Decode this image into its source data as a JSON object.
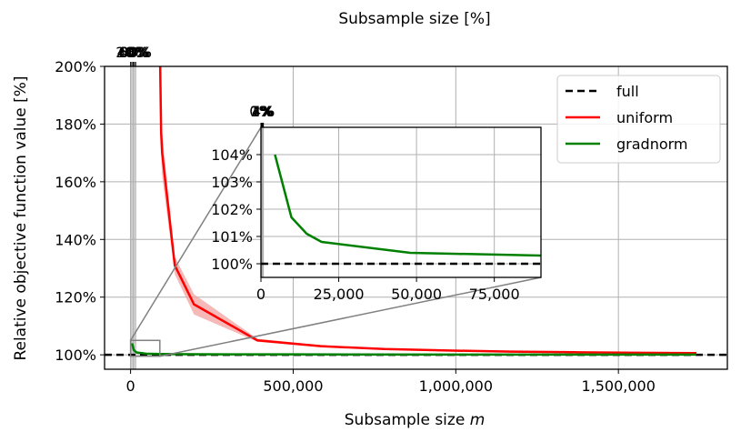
{
  "chart_data": [
    {
      "type": "line",
      "xlabel_prefix": "Subsample size ",
      "xlabel_var": "m",
      "ylabel": "Relative objective function value [%]",
      "secondary_xlabel": "Subsample size [%]",
      "xlim": [
        -80000,
        1835000
      ],
      "ylim": [
        95,
        200
      ],
      "x_ticks": [
        0,
        500000,
        1000000,
        1500000
      ],
      "x_tick_labels": [
        "0",
        "500,000",
        "1,000,000",
        "1,500,000"
      ],
      "y_ticks": [
        100,
        120,
        140,
        160,
        180,
        200
      ],
      "y_tick_labels": [
        "100%",
        "120%",
        "140%",
        "160%",
        "180%",
        "200%"
      ],
      "secondary_x_ticks": [
        0,
        20,
        40,
        60,
        80
      ],
      "secondary_x_tick_labels": [
        "0%",
        "20%",
        "40%",
        "60%",
        "80%"
      ],
      "secondary_x_factor": 5.12e-05,
      "grid": true,
      "legend_position": "top-right",
      "series": [
        {
          "name": "full",
          "style": "dashed",
          "color": "#000000",
          "x": [
            -80000,
            1835000
          ],
          "y": [
            100,
            100
          ]
        },
        {
          "name": "uniform",
          "color": "#ff0000",
          "band_color": "#f4a0a0",
          "x": [
            91000,
            94000,
            97000,
            136000,
            195000,
            390000,
            585000,
            780000,
            975000,
            1170000,
            1365000,
            1560000,
            1740000
          ],
          "y": [
            200,
            177,
            170,
            131,
            117.5,
            105,
            103,
            102,
            101.5,
            101.1,
            100.9,
            100.7,
            100.6
          ],
          "y_low": [
            190,
            170,
            162,
            128,
            114,
            104.5,
            102.7,
            101.8,
            101.3,
            101.0,
            100.8,
            100.6,
            100.5
          ],
          "y_high": [
            200,
            183,
            177,
            134,
            121,
            105.6,
            103.3,
            102.2,
            101.7,
            101.2,
            101.0,
            100.8,
            100.7
          ]
        },
        {
          "name": "gradnorm",
          "color": "#008000",
          "x": [
            4500,
            9800,
            14700,
            19500,
            48000,
            90000,
            200000,
            500000,
            1000000,
            1500000,
            1740000
          ],
          "y": [
            104,
            101.7,
            101.1,
            100.8,
            100.4,
            100.3,
            100.2,
            100.15,
            100.1,
            100.1,
            100.1
          ]
        }
      ],
      "zoom_box": {
        "x": [
          0,
          90000
        ],
        "y": [
          99.5,
          105
        ]
      }
    },
    {
      "type": "line",
      "inset": true,
      "xlim": [
        0,
        90000
      ],
      "ylim": [
        99.5,
        105
      ],
      "x_ticks": [
        0,
        25000,
        50000,
        75000
      ],
      "x_tick_labels": [
        "0",
        "25,000",
        "50,000",
        "75,000"
      ],
      "y_ticks": [
        100,
        101,
        102,
        103,
        104
      ],
      "y_tick_labels": [
        "100%",
        "101%",
        "102%",
        "103%",
        "104%"
      ],
      "secondary_x_ticks": [
        0,
        1,
        2,
        3,
        4
      ],
      "secondary_x_tick_labels": [
        "0%",
        "1%",
        "2%",
        "3%",
        "4%"
      ],
      "secondary_x_factor": 5.12e-05,
      "grid": true,
      "series": [
        {
          "name": "full",
          "style": "dashed",
          "color": "#000000",
          "x": [
            0,
            90000
          ],
          "y": [
            100,
            100
          ]
        },
        {
          "name": "gradnorm",
          "color": "#008000",
          "x": [
            4500,
            9800,
            14700,
            19500,
            48000,
            90000
          ],
          "y": [
            104,
            101.7,
            101.1,
            100.8,
            100.4,
            100.3
          ]
        }
      ]
    }
  ]
}
